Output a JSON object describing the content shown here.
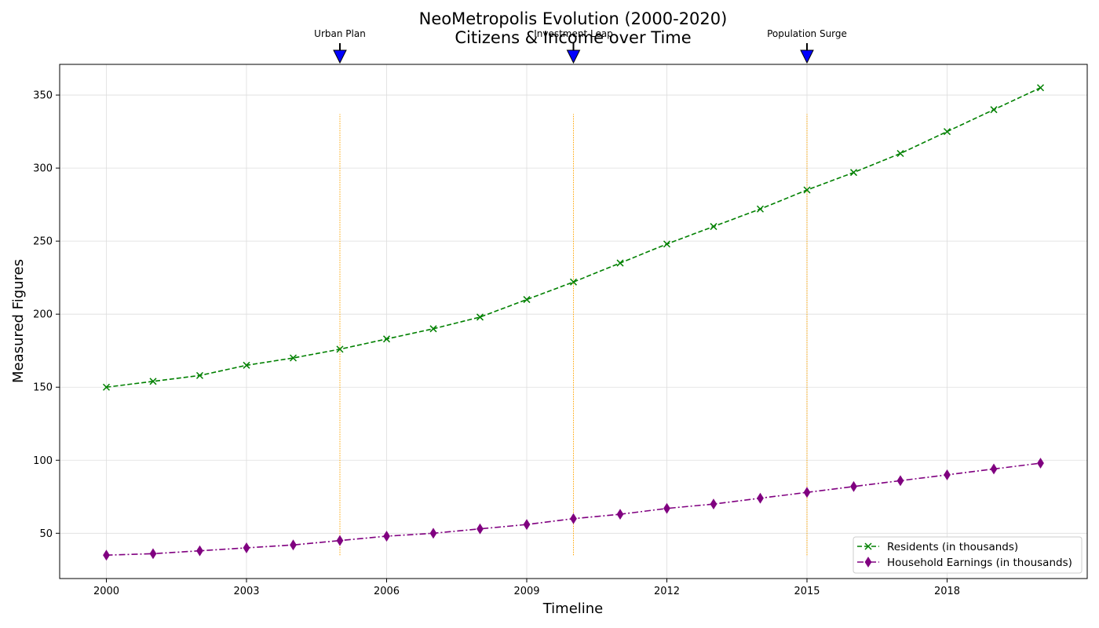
{
  "chart_data": {
    "type": "line",
    "title_line1": "NeoMetropolis Evolution (2000-2020)",
    "title_line2": "Citizens & Income over Time",
    "xlabel": "Timeline",
    "ylabel": "Measured Figures",
    "xlim": [
      1999,
      2021
    ],
    "ylim": [
      19,
      371
    ],
    "x_ticks": [
      2000,
      2003,
      2006,
      2009,
      2012,
      2015,
      2018
    ],
    "y_ticks": [
      50,
      100,
      150,
      200,
      250,
      300,
      350
    ],
    "grid": true,
    "legend_position": "lower-right",
    "x": [
      2000,
      2001,
      2002,
      2003,
      2004,
      2005,
      2006,
      2007,
      2008,
      2009,
      2010,
      2011,
      2012,
      2013,
      2014,
      2015,
      2016,
      2017,
      2018,
      2019,
      2020
    ],
    "series": [
      {
        "name": "Residents (in thousands)",
        "color": "#008000",
        "marker": "x",
        "line_style": "dashed",
        "values": [
          150,
          154,
          158,
          165,
          170,
          176,
          183,
          190,
          198,
          210,
          222,
          235,
          248,
          260,
          272,
          285,
          297,
          310,
          325,
          340,
          355
        ]
      },
      {
        "name": "Household Earnings (in thousands)",
        "color": "#800080",
        "marker": "diamond",
        "line_style": "dashdot",
        "values": [
          35,
          36,
          38,
          40,
          42,
          45,
          48,
          50,
          53,
          56,
          60,
          63,
          67,
          70,
          74,
          78,
          82,
          86,
          90,
          94,
          98
        ]
      }
    ],
    "annotations": [
      {
        "year": 2005,
        "label": "Urban Plan"
      },
      {
        "year": 2010,
        "label": "Investment Leap"
      },
      {
        "year": 2015,
        "label": "Population Surge"
      }
    ],
    "vline_y_range": [
      35,
      337
    ],
    "vline_color": "#FFA500",
    "arrow_color": "#0000FF"
  }
}
